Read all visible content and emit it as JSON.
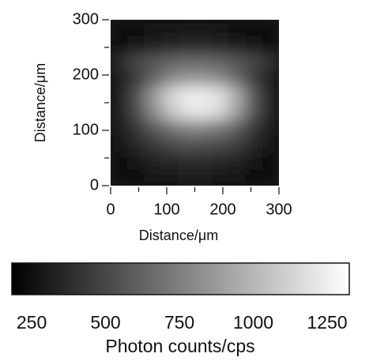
{
  "chart_data": {
    "type": "heatmap",
    "x": [
      15,
      45,
      75,
      105,
      135,
      165,
      195,
      225,
      255,
      285
    ],
    "y": [
      15,
      45,
      75,
      105,
      135,
      165,
      195,
      225,
      255,
      285
    ],
    "z": [
      [
        250,
        260,
        280,
        290,
        300,
        300,
        290,
        280,
        260,
        250
      ],
      [
        260,
        290,
        330,
        360,
        380,
        380,
        360,
        330,
        290,
        260
      ],
      [
        280,
        350,
        430,
        500,
        540,
        540,
        510,
        450,
        360,
        280
      ],
      [
        300,
        420,
        580,
        700,
        780,
        780,
        720,
        600,
        430,
        300
      ],
      [
        320,
        520,
        800,
        1050,
        1200,
        1230,
        1150,
        900,
        560,
        330
      ],
      [
        320,
        540,
        850,
        1120,
        1250,
        1250,
        1180,
        950,
        580,
        330
      ],
      [
        300,
        440,
        620,
        780,
        860,
        860,
        800,
        650,
        450,
        300
      ],
      [
        380,
        500,
        560,
        620,
        650,
        650,
        620,
        560,
        500,
        400
      ],
      [
        260,
        290,
        320,
        340,
        350,
        350,
        340,
        320,
        290,
        260
      ],
      [
        250,
        260,
        270,
        280,
        280,
        280,
        270,
        260,
        250,
        250
      ]
    ],
    "xlim": [
      0,
      300
    ],
    "ylim": [
      0,
      300
    ],
    "xticks": [
      0,
      100,
      200,
      300
    ],
    "yticks": [
      0,
      100,
      200,
      300
    ],
    "xminorticks": [
      50,
      150,
      250
    ],
    "yminorticks": [
      50,
      150,
      250
    ],
    "xlabel": "Distance/μm",
    "ylabel": "Distance/μm",
    "colorbar": {
      "label": "Photon counts/cps",
      "lim": [
        183,
        1325
      ],
      "ticks": [
        250,
        500,
        750,
        1000,
        1250
      ]
    }
  }
}
